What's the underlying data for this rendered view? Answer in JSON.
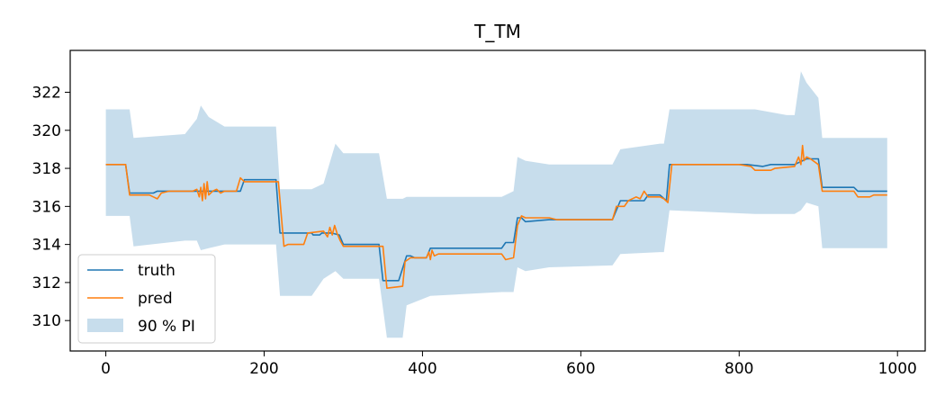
{
  "chart_data": {
    "type": "line",
    "title": "T_TM",
    "xlabel": "",
    "ylabel": "",
    "xlim": [
      -45,
      1035
    ],
    "ylim": [
      308.4,
      324.2
    ],
    "xticks": [
      0,
      200,
      400,
      600,
      800,
      1000
    ],
    "yticks": [
      310,
      312,
      314,
      316,
      318,
      320,
      322
    ],
    "grid": false,
    "legend_position": "lower-left",
    "series": [
      {
        "name": "truth",
        "color": "#1f77b4",
        "points": [
          [
            0,
            318.2
          ],
          [
            25,
            318.2
          ],
          [
            30,
            316.7
          ],
          [
            60,
            316.7
          ],
          [
            65,
            316.8
          ],
          [
            90,
            316.8
          ],
          [
            170,
            316.8
          ],
          [
            175,
            317.4
          ],
          [
            215,
            317.4
          ],
          [
            220,
            314.6
          ],
          [
            260,
            314.6
          ],
          [
            262,
            314.5
          ],
          [
            270,
            314.5
          ],
          [
            273,
            314.6
          ],
          [
            285,
            314.6
          ],
          [
            295,
            314.5
          ],
          [
            300,
            314.0
          ],
          [
            345,
            314.0
          ],
          [
            350,
            312.1
          ],
          [
            370,
            312.1
          ],
          [
            380,
            313.4
          ],
          [
            385,
            313.4
          ],
          [
            390,
            313.3
          ],
          [
            405,
            313.3
          ],
          [
            410,
            313.8
          ],
          [
            500,
            313.8
          ],
          [
            505,
            314.1
          ],
          [
            515,
            314.1
          ],
          [
            520,
            315.4
          ],
          [
            525,
            315.4
          ],
          [
            530,
            315.2
          ],
          [
            560,
            315.3
          ],
          [
            640,
            315.3
          ],
          [
            650,
            316.3
          ],
          [
            680,
            316.3
          ],
          [
            685,
            316.6
          ],
          [
            700,
            316.6
          ],
          [
            708,
            316.3
          ],
          [
            712,
            318.2
          ],
          [
            810,
            318.2
          ],
          [
            830,
            318.1
          ],
          [
            840,
            318.2
          ],
          [
            870,
            318.2
          ],
          [
            885,
            318.5
          ],
          [
            900,
            318.5
          ],
          [
            905,
            317.0
          ],
          [
            945,
            317.0
          ],
          [
            950,
            316.8
          ],
          [
            987,
            316.8
          ]
        ]
      },
      {
        "name": "pred",
        "color": "#ff7f0e",
        "points": [
          [
            0,
            318.2
          ],
          [
            25,
            318.2
          ],
          [
            30,
            316.6
          ],
          [
            55,
            316.6
          ],
          [
            60,
            316.5
          ],
          [
            65,
            316.4
          ],
          [
            70,
            316.7
          ],
          [
            80,
            316.8
          ],
          [
            110,
            316.8
          ],
          [
            115,
            316.9
          ],
          [
            118,
            316.5
          ],
          [
            120,
            317.0
          ],
          [
            122,
            316.3
          ],
          [
            124,
            317.2
          ],
          [
            126,
            316.4
          ],
          [
            128,
            317.3
          ],
          [
            130,
            316.6
          ],
          [
            135,
            316.8
          ],
          [
            140,
            316.9
          ],
          [
            145,
            316.7
          ],
          [
            150,
            316.8
          ],
          [
            165,
            316.8
          ],
          [
            170,
            317.5
          ],
          [
            175,
            317.3
          ],
          [
            218,
            317.3
          ],
          [
            225,
            313.9
          ],
          [
            230,
            314.0
          ],
          [
            250,
            314.0
          ],
          [
            255,
            314.6
          ],
          [
            275,
            314.7
          ],
          [
            280,
            314.4
          ],
          [
            283,
            314.9
          ],
          [
            286,
            314.5
          ],
          [
            289,
            315.0
          ],
          [
            292,
            314.6
          ],
          [
            296,
            314.2
          ],
          [
            300,
            313.9
          ],
          [
            350,
            313.9
          ],
          [
            355,
            311.7
          ],
          [
            375,
            311.8
          ],
          [
            378,
            313.1
          ],
          [
            385,
            313.3
          ],
          [
            405,
            313.3
          ],
          [
            408,
            313.6
          ],
          [
            410,
            313.2
          ],
          [
            412,
            313.7
          ],
          [
            415,
            313.4
          ],
          [
            420,
            313.5
          ],
          [
            500,
            313.5
          ],
          [
            505,
            313.2
          ],
          [
            515,
            313.3
          ],
          [
            520,
            315.0
          ],
          [
            525,
            315.5
          ],
          [
            530,
            315.4
          ],
          [
            560,
            315.4
          ],
          [
            570,
            315.3
          ],
          [
            640,
            315.3
          ],
          [
            645,
            316.0
          ],
          [
            655,
            316.0
          ],
          [
            660,
            316.3
          ],
          [
            670,
            316.5
          ],
          [
            675,
            316.4
          ],
          [
            680,
            316.8
          ],
          [
            685,
            316.5
          ],
          [
            700,
            316.5
          ],
          [
            705,
            316.4
          ],
          [
            710,
            316.2
          ],
          [
            715,
            318.2
          ],
          [
            800,
            318.2
          ],
          [
            815,
            318.1
          ],
          [
            820,
            317.9
          ],
          [
            840,
            317.9
          ],
          [
            845,
            318.0
          ],
          [
            870,
            318.1
          ],
          [
            875,
            318.6
          ],
          [
            878,
            318.2
          ],
          [
            880,
            319.2
          ],
          [
            882,
            318.4
          ],
          [
            885,
            318.6
          ],
          [
            890,
            318.5
          ],
          [
            900,
            318.2
          ],
          [
            905,
            316.8
          ],
          [
            945,
            316.8
          ],
          [
            950,
            316.5
          ],
          [
            965,
            316.5
          ],
          [
            970,
            316.6
          ],
          [
            987,
            316.6
          ]
        ]
      }
    ],
    "band": {
      "name": "90 % PI",
      "color": "#1f77b4",
      "opacity": 0.25,
      "points": [
        [
          0,
          321.1,
          315.5
        ],
        [
          30,
          321.1,
          315.5
        ],
        [
          35,
          319.6,
          313.9
        ],
        [
          100,
          319.8,
          314.2
        ],
        [
          115,
          320.6,
          314.2
        ],
        [
          120,
          321.3,
          313.7
        ],
        [
          130,
          320.7,
          313.8
        ],
        [
          150,
          320.2,
          314.0
        ],
        [
          170,
          320.2,
          314.0
        ],
        [
          215,
          320.2,
          314.0
        ],
        [
          220,
          316.9,
          311.3
        ],
        [
          260,
          316.9,
          311.3
        ],
        [
          275,
          317.2,
          312.2
        ],
        [
          290,
          319.3,
          312.6
        ],
        [
          300,
          318.8,
          312.2
        ],
        [
          345,
          318.8,
          312.2
        ],
        [
          355,
          316.4,
          309.1
        ],
        [
          375,
          316.4,
          309.1
        ],
        [
          380,
          316.5,
          310.8
        ],
        [
          410,
          316.5,
          311.3
        ],
        [
          500,
          316.5,
          311.5
        ],
        [
          515,
          316.8,
          311.5
        ],
        [
          520,
          318.6,
          312.8
        ],
        [
          530,
          318.4,
          312.6
        ],
        [
          560,
          318.2,
          312.8
        ],
        [
          640,
          318.2,
          312.9
        ],
        [
          650,
          319.0,
          313.5
        ],
        [
          700,
          319.3,
          313.6
        ],
        [
          705,
          319.3,
          313.6
        ],
        [
          712,
          321.1,
          315.8
        ],
        [
          820,
          321.1,
          315.6
        ],
        [
          860,
          320.8,
          315.6
        ],
        [
          870,
          320.8,
          315.6
        ],
        [
          878,
          323.1,
          315.8
        ],
        [
          885,
          322.5,
          316.2
        ],
        [
          900,
          321.7,
          316.0
        ],
        [
          905,
          319.6,
          313.8
        ],
        [
          945,
          319.6,
          313.8
        ],
        [
          987,
          319.6,
          313.8
        ]
      ]
    }
  }
}
